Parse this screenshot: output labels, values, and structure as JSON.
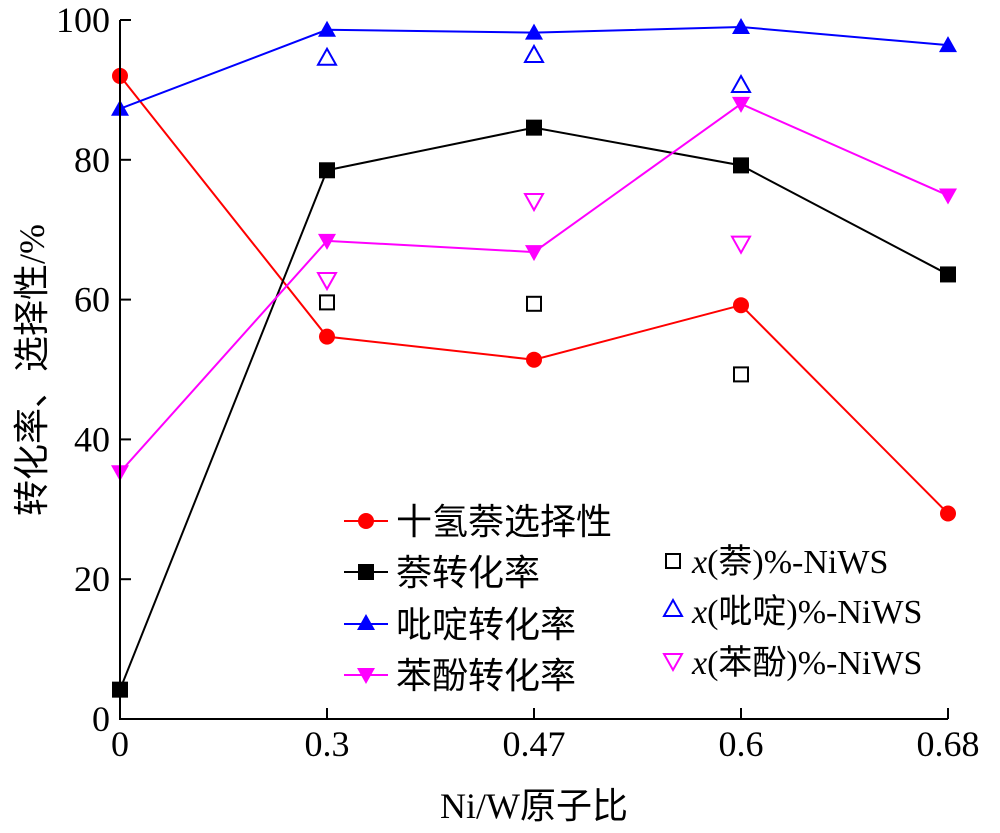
{
  "chart_data": {
    "type": "line",
    "title": "",
    "xlabel": "Ni/W原子比",
    "ylabel": "转化率、选择性/%",
    "x_categories": [
      "0",
      "0.3",
      "0.47",
      "0.6",
      "0.68"
    ],
    "ylim": [
      0,
      100
    ],
    "yticks": [
      0,
      20,
      40,
      60,
      80,
      100
    ],
    "grid": false,
    "series": [
      {
        "name": "十氢萘选择性",
        "kind": "line",
        "marker": "circle-filled",
        "color": "#ff0000",
        "values": [
          92,
          54.7,
          51.4,
          59.2,
          29.4
        ]
      },
      {
        "name": "萘转化率",
        "kind": "line",
        "marker": "square-filled",
        "color": "#000000",
        "values": [
          4.2,
          78.5,
          84.6,
          79.2,
          63.6
        ]
      },
      {
        "name": "吡啶转化率",
        "kind": "line",
        "marker": "triangle-up-filled",
        "color": "#0000ff",
        "values": [
          87.3,
          98.6,
          98.2,
          99.0,
          96.4
        ]
      },
      {
        "name": "苯酚转化率",
        "kind": "line",
        "marker": "triangle-down-filled",
        "color": "#ff00ff",
        "values": [
          35.3,
          68.4,
          66.8,
          88.0,
          74.9
        ]
      },
      {
        "name": "x(萘)%-NiWS",
        "kind": "scatter",
        "marker": "square-open",
        "color": "#000000",
        "values": [
          null,
          59.6,
          59.4,
          49.3,
          null
        ]
      },
      {
        "name": "x(吡啶)%-NiWS",
        "kind": "scatter",
        "marker": "triangle-up-open",
        "color": "#0000ff",
        "values": [
          null,
          94.6,
          95.0,
          90.7,
          null
        ]
      },
      {
        "name": "x(苯酚)%-NiWS",
        "kind": "scatter",
        "marker": "triangle-down-open",
        "color": "#ff00ff",
        "values": [
          null,
          62.8,
          74.1,
          68.0,
          null
        ]
      }
    ],
    "legend_left": {
      "placement": "lower-middle",
      "entries": [
        "十氢萘选择性",
        "萘转化率",
        "吡啶转化率",
        "苯酚转化率"
      ]
    },
    "legend_right": {
      "placement": "lower-right",
      "entries": [
        {
          "italic": "x",
          "rest": "(萘)%-NiWS"
        },
        {
          "italic": "x",
          "rest": "(吡啶)%-NiWS"
        },
        {
          "italic": "x",
          "rest": "(苯酚)%-NiWS"
        }
      ]
    }
  }
}
